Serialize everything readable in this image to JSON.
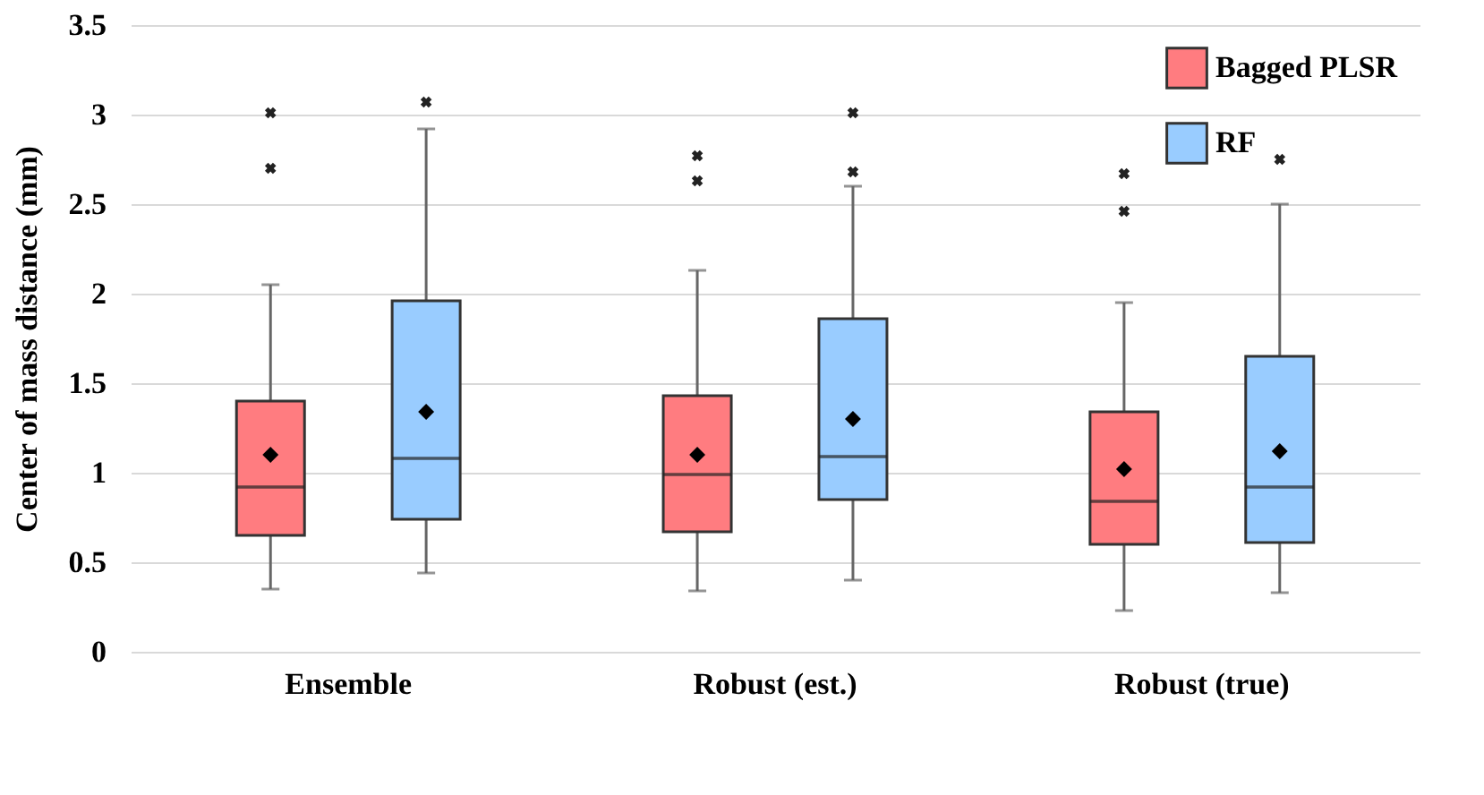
{
  "chart_data": {
    "type": "box",
    "ylabel": "Center of mass distance (mm)",
    "categories": [
      "Ensemble",
      "Robust (est.)",
      "Robust (true)"
    ],
    "ylim": [
      0,
      3.5
    ],
    "yticks": [
      0,
      0.5,
      1,
      1.5,
      2,
      2.5,
      3,
      3.5
    ],
    "grid": "y",
    "legend": "top right",
    "series": [
      {
        "name": "Bagged PLSR",
        "color": "#ff7c80",
        "boxes": [
          {
            "low": 0.35,
            "q1": 0.65,
            "median": 0.92,
            "q3": 1.4,
            "high": 2.05,
            "mean": 1.1,
            "outliers": [
              3.01,
              2.7
            ]
          },
          {
            "low": 0.34,
            "q1": 0.67,
            "median": 0.99,
            "q3": 1.43,
            "high": 2.13,
            "mean": 1.1,
            "outliers": [
              2.77,
              2.63
            ]
          },
          {
            "low": 0.23,
            "q1": 0.6,
            "median": 0.84,
            "q3": 1.34,
            "high": 1.95,
            "mean": 1.02,
            "outliers": [
              2.67,
              2.46
            ]
          }
        ]
      },
      {
        "name": "RF",
        "color": "#99ccff",
        "boxes": [
          {
            "low": 0.44,
            "q1": 0.74,
            "median": 1.08,
            "q3": 1.96,
            "high": 2.92,
            "mean": 1.34,
            "outliers": [
              3.07
            ]
          },
          {
            "low": 0.4,
            "q1": 0.85,
            "median": 1.09,
            "q3": 1.86,
            "high": 2.6,
            "mean": 1.3,
            "outliers": [
              3.01,
              2.68
            ]
          },
          {
            "low": 0.33,
            "q1": 0.61,
            "median": 0.92,
            "q3": 1.65,
            "high": 2.5,
            "mean": 1.12,
            "outliers": [
              2.75
            ]
          }
        ]
      }
    ]
  }
}
